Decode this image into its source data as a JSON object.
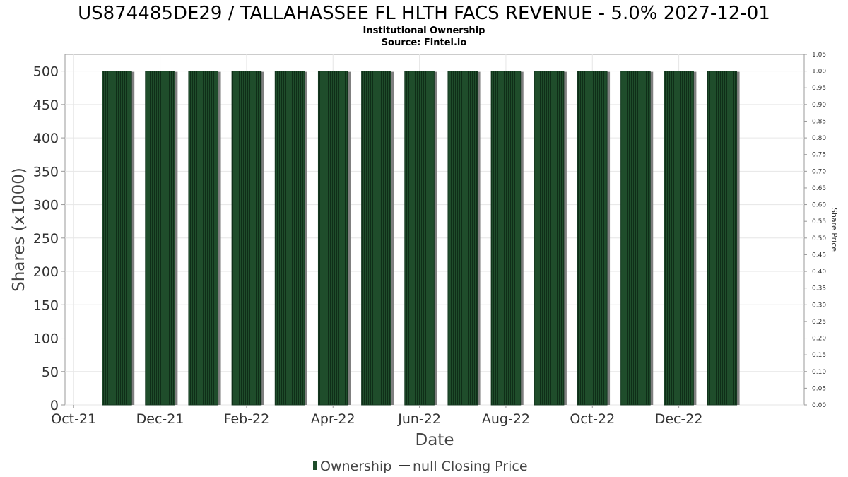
{
  "chart_data": {
    "type": "bar",
    "title": "US874485DE29 / TALLAHASSEE FL HLTH FACS REVENUE - 5.0% 2027-12-01",
    "subtitle_1": "Institutional Ownership",
    "subtitle_2": "Source: Fintel.io",
    "xlabel": "Date",
    "ylabel": "Shares (x1000)",
    "y2label": "Share Price",
    "ylim": [
      0,
      525
    ],
    "y2lim": [
      0,
      1.05
    ],
    "yticks": [
      "0",
      "50",
      "100",
      "150",
      "200",
      "250",
      "300",
      "350",
      "400",
      "450",
      "500"
    ],
    "y2ticks": [
      "0.00",
      "0.05",
      "0.10",
      "0.15",
      "0.20",
      "0.25",
      "0.30",
      "0.35",
      "0.40",
      "0.45",
      "0.50",
      "0.55",
      "0.60",
      "0.65",
      "0.70",
      "0.75",
      "0.80",
      "0.85",
      "0.90",
      "0.95",
      "1.00",
      "1.05"
    ],
    "xticks": [
      "Oct-21",
      "Dec-21",
      "Feb-22",
      "Apr-22",
      "Jun-22",
      "Aug-22",
      "Oct-22",
      "Dec-22"
    ],
    "xtick_months": [
      0,
      2,
      4,
      6,
      8,
      10,
      12,
      14
    ],
    "bar_months": [
      1,
      2,
      3,
      4,
      5,
      6,
      7,
      8,
      9,
      10,
      11,
      12,
      13,
      14,
      15
    ],
    "x_range_months": [
      -0.2,
      16.9
    ],
    "series": [
      {
        "name": "Ownership",
        "values": [
          500,
          500,
          500,
          500,
          500,
          500,
          500,
          500,
          500,
          500,
          500,
          500,
          500,
          500,
          500
        ]
      },
      {
        "name": "null Closing Price",
        "values": []
      }
    ],
    "grid": true,
    "legend_position": "bottom-center",
    "bar_color": "#1f4d2b",
    "bar_shadow_color": "#808080",
    "line_color": "#333333"
  }
}
